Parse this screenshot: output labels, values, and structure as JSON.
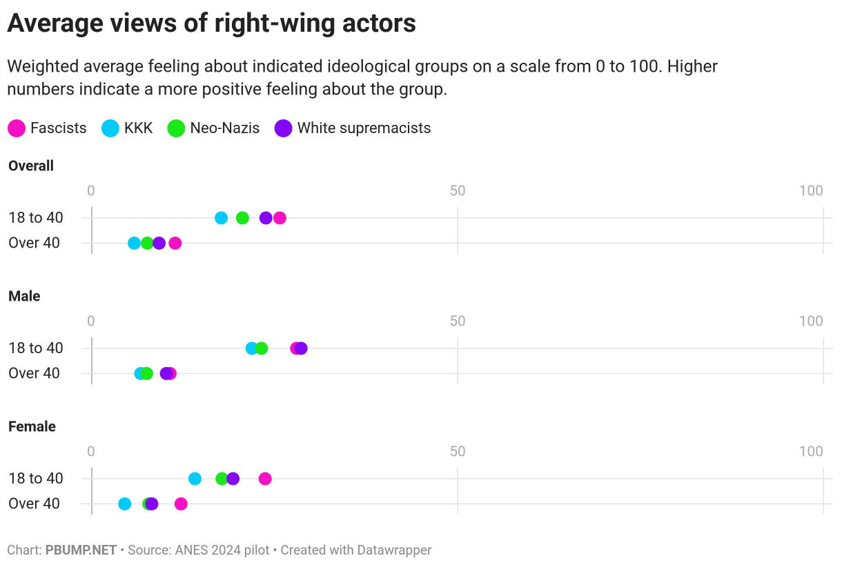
{
  "title": "Average views of right-wing actors",
  "subtitle": [
    "Weighted average feeling about indicated ideological groups on a scale from 0 to 100. Higher",
    "numbers indicate a more positive feeling about the group."
  ],
  "footer": {
    "prefix": "Chart:",
    "credit": "PBUMP.NET",
    "rest": "• Source: ANES 2024 pilot • Created with Datawrapper"
  },
  "chart_data": [
    {
      "type": "dot",
      "title": "Overall",
      "categories": [
        "18 to 40",
        "Over 40"
      ],
      "xlim": [
        0,
        100
      ],
      "xticks": [
        0,
        50,
        100
      ],
      "grid": true,
      "series": [
        {
          "name": "Fascists",
          "color": "#f70fc3",
          "values": [
            25.7,
            11.4
          ]
        },
        {
          "name": "KKK",
          "color": "#00cbfa",
          "values": [
            17.7,
            5.8
          ]
        },
        {
          "name": "Neo-Nazis",
          "color": "#1ae81a",
          "values": [
            20.6,
            7.6
          ]
        },
        {
          "name": "White supremacists",
          "color": "#8505f5",
          "values": [
            23.8,
            9.2
          ]
        }
      ]
    },
    {
      "type": "dot",
      "title": "Male",
      "categories": [
        "18 to 40",
        "Over 40"
      ],
      "xlim": [
        0,
        100
      ],
      "xticks": [
        0,
        50,
        100
      ],
      "grid": true,
      "series": [
        {
          "name": "Fascists",
          "color": "#f70fc3",
          "values": [
            28.0,
            10.7
          ]
        },
        {
          "name": "KKK",
          "color": "#00cbfa",
          "values": [
            21.9,
            6.7
          ]
        },
        {
          "name": "Neo-Nazis",
          "color": "#1ae81a",
          "values": [
            23.2,
            7.5
          ]
        },
        {
          "name": "White supremacists",
          "color": "#8505f5",
          "values": [
            28.6,
            10.2
          ]
        }
      ]
    },
    {
      "type": "dot",
      "title": "Female",
      "categories": [
        "18 to 40",
        "Over 40"
      ],
      "xlim": [
        0,
        100
      ],
      "xticks": [
        0,
        50,
        100
      ],
      "grid": true,
      "series": [
        {
          "name": "Fascists",
          "color": "#f70fc3",
          "values": [
            23.7,
            12.2
          ]
        },
        {
          "name": "KKK",
          "color": "#00cbfa",
          "values": [
            14.1,
            4.5
          ]
        },
        {
          "name": "Neo-Nazis",
          "color": "#1ae81a",
          "values": [
            17.8,
            7.8
          ]
        },
        {
          "name": "White supremacists",
          "color": "#8505f5",
          "values": [
            19.3,
            8.2
          ]
        }
      ]
    }
  ]
}
